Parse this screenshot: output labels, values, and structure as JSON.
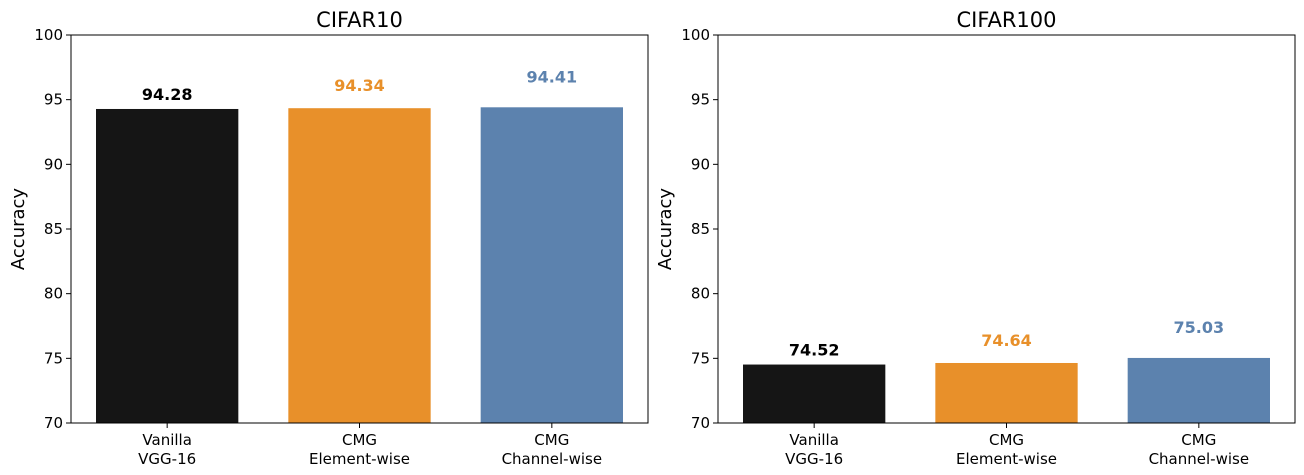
{
  "chart_data": [
    {
      "type": "bar",
      "title": "CIFAR10",
      "ylabel": "Accuracy",
      "xlabel": "",
      "ylim": [
        70,
        100
      ],
      "yticks": [
        70,
        75,
        80,
        85,
        90,
        95,
        100
      ],
      "grid": false,
      "categories": [
        [
          "Vanilla",
          "VGG-16"
        ],
        [
          "CMG",
          "Element-wise"
        ],
        [
          "CMG",
          "Channel-wise"
        ]
      ],
      "values": [
        94.28,
        94.34,
        94.41
      ],
      "data_labels": [
        "94.28",
        "94.34",
        "94.41"
      ],
      "colors": [
        "#151515",
        "#e8902a",
        "#5c82ae"
      ],
      "label_colors": [
        "#000000",
        "#e8902a",
        "#5c82ae"
      ]
    },
    {
      "type": "bar",
      "title": "CIFAR100",
      "ylabel": "Accuracy",
      "xlabel": "",
      "ylim": [
        70,
        100
      ],
      "yticks": [
        70,
        75,
        80,
        85,
        90,
        95,
        100
      ],
      "grid": false,
      "categories": [
        [
          "Vanilla",
          "VGG-16"
        ],
        [
          "CMG",
          "Element-wise"
        ],
        [
          "CMG",
          "Channel-wise"
        ]
      ],
      "values": [
        74.52,
        74.64,
        75.03
      ],
      "data_labels": [
        "74.52",
        "74.64",
        "75.03"
      ],
      "colors": [
        "#151515",
        "#e8902a",
        "#5c82ae"
      ],
      "label_colors": [
        "#000000",
        "#e8902a",
        "#5c82ae"
      ]
    }
  ]
}
